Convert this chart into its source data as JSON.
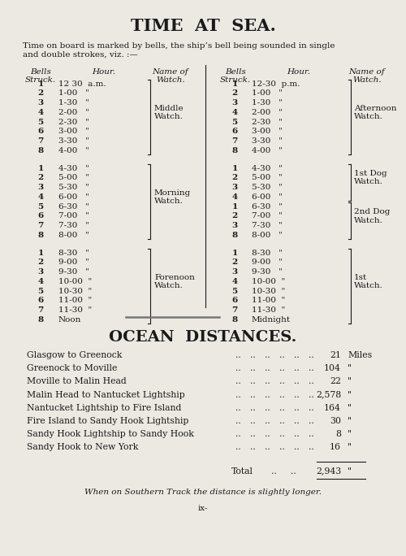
{
  "title1": "TIME  AT  SEA.",
  "intro_text": "Time on board is marked by bells, the ship’s bell being sounded in single\nand double strokes, viz. :—",
  "am_groups": [
    {
      "bells": [
        "1",
        "2",
        "3",
        "4",
        "5",
        "6",
        "7",
        "8"
      ],
      "hours": [
        "12 30  a.m.",
        "1-00   \"",
        "1-30   \"",
        "2-00   \"",
        "2-30   \"",
        "3-00   \"",
        "3-30   \"",
        "4-00   \""
      ],
      "watch_name": "Middle\nWatch.",
      "watch_row": 3
    },
    {
      "bells": [
        "1",
        "2",
        "3",
        "4",
        "5",
        "6",
        "7",
        "8"
      ],
      "hours": [
        "4-30   \"",
        "5-00   \"",
        "5-30   \"",
        "6-00   \"",
        "6-30   \"",
        "7-00   \"",
        "7-30   \"",
        "8-00   \""
      ],
      "watch_name": "Morning\nWatch.",
      "watch_row": 3
    },
    {
      "bells": [
        "1",
        "2",
        "3",
        "4",
        "5",
        "6",
        "7",
        "8"
      ],
      "hours": [
        "8-30   \"",
        "9-00   \"",
        "9-30   \"",
        "10-00  \"",
        "10-30  \"",
        "11-00  \"",
        "11-30  \"",
        "Noon"
      ],
      "watch_name": "Forenoon\nWatch.",
      "watch_row": 3
    }
  ],
  "pm_groups": [
    {
      "bells": [
        "1",
        "2",
        "3",
        "4",
        "5",
        "6",
        "7",
        "8"
      ],
      "hours": [
        "12-30  p.m.",
        "1-00   \"",
        "1-30   \"",
        "2-00   \"",
        "2-30   \"",
        "3-00   \"",
        "3-30   \"",
        "4-00   \""
      ],
      "watch_name": "Afternoon\nWatch.",
      "watch_row": 3,
      "split": false
    },
    {
      "bells": [
        "1",
        "2",
        "3",
        "4",
        "1",
        "2",
        "3",
        "8"
      ],
      "hours": [
        "4-30   \"",
        "5-00   \"",
        "5-30   \"",
        "6-00   \"",
        "6-30   \"",
        "7-00   \"",
        "7-30   \"",
        "8-00   \""
      ],
      "watch_name": "1st Dog\nWatch.",
      "watch_name2": "2nd Dog\nWatch.",
      "watch_row": 1,
      "watch_row2": 5,
      "split": true
    },
    {
      "bells": [
        "1",
        "2",
        "3",
        "4",
        "5",
        "6",
        "7",
        "8"
      ],
      "hours": [
        "8-30   \"",
        "9-00   \"",
        "9-30   \"",
        "10-00  \"",
        "10-30  \"",
        "11-00  \"",
        "11-30  \"",
        "Midnight"
      ],
      "watch_name": "1st\nWatch.",
      "watch_row": 3,
      "split": false
    }
  ],
  "title2": "OCEAN  DISTANCES.",
  "distances": [
    [
      "Glasgow to Greenock",
      "21",
      "Miles"
    ],
    [
      "Greenock to Moville",
      "104",
      "\""
    ],
    [
      "Moville to Malin Head",
      "22",
      "\""
    ],
    [
      "Malin Head to Nantucket Lightship",
      "2,578",
      "\""
    ],
    [
      "Nantucket Lightship to Fire Island",
      "164",
      "\""
    ],
    [
      "Fire Island to Sandy Hook Lightship",
      "30",
      "\""
    ],
    [
      "Sandy Hook Lightship to Sandy Hook",
      "8",
      "\""
    ],
    [
      "Sandy Hook to New York",
      "16",
      "\""
    ]
  ],
  "total_label": "Total",
  "total_value": "2,943",
  "total_unit": "\"",
  "footnote": "When on Southern Track the distance is slightly longer.",
  "page_num": "ix-",
  "bg_color": "#ece9e2",
  "text_color": "#1a1a1a"
}
